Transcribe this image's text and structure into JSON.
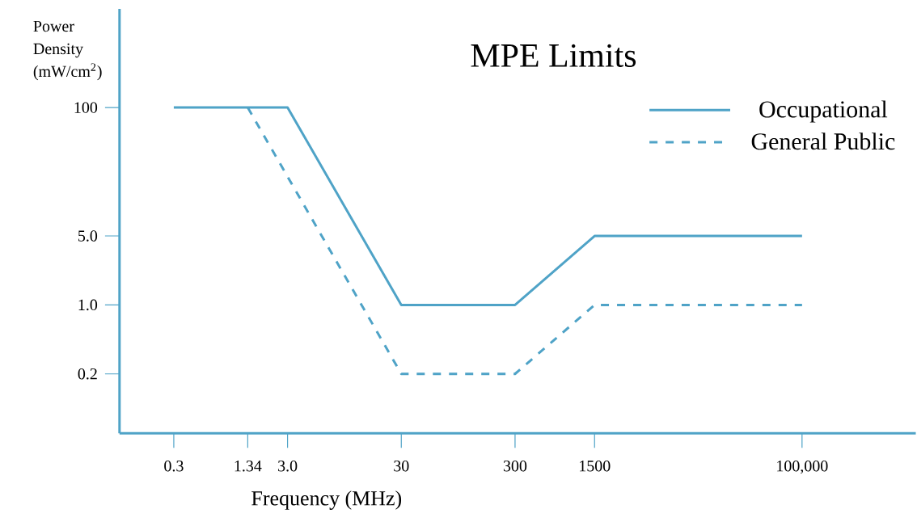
{
  "chart_data": {
    "type": "line",
    "title": "MPE Limits",
    "xlabel": "Frequency (MHz)",
    "ylabel": "Power Density (mW/cm$^{2}$)",
    "log": "xy",
    "legend": "top right",
    "xlim": [
      0.1,
      1000000
    ],
    "ylim": [
      0.05,
      1000
    ],
    "xticks": [
      0.3,
      1.34,
      {
        "value": 3,
        "label": "3.0"
      },
      30,
      300,
      1500,
      {
        "value": 100000,
        "label": "100,000"
      }
    ],
    "yticks": [
      0.2,
      {
        "value": 1,
        "label": "1.0"
      },
      {
        "value": 5,
        "label": "5.0"
      },
      100
    ],
    "series": [
      {
        "name": "Occupational",
        "color": "#4fa3c7",
        "line_style": "solid",
        "x": [
          0.3,
          3,
          30,
          300,
          1500,
          100000
        ],
        "values": [
          100,
          100,
          1.0,
          1.0,
          5.0,
          5.0
        ]
      },
      {
        "name": "General Public",
        "color": "#4fa3c7",
        "line_style": "dashed",
        "x": [
          1.34,
          30,
          300,
          1500,
          100000
        ],
        "values": [
          100,
          0.2,
          0.2,
          1.0,
          1.0
        ]
      }
    ]
  }
}
